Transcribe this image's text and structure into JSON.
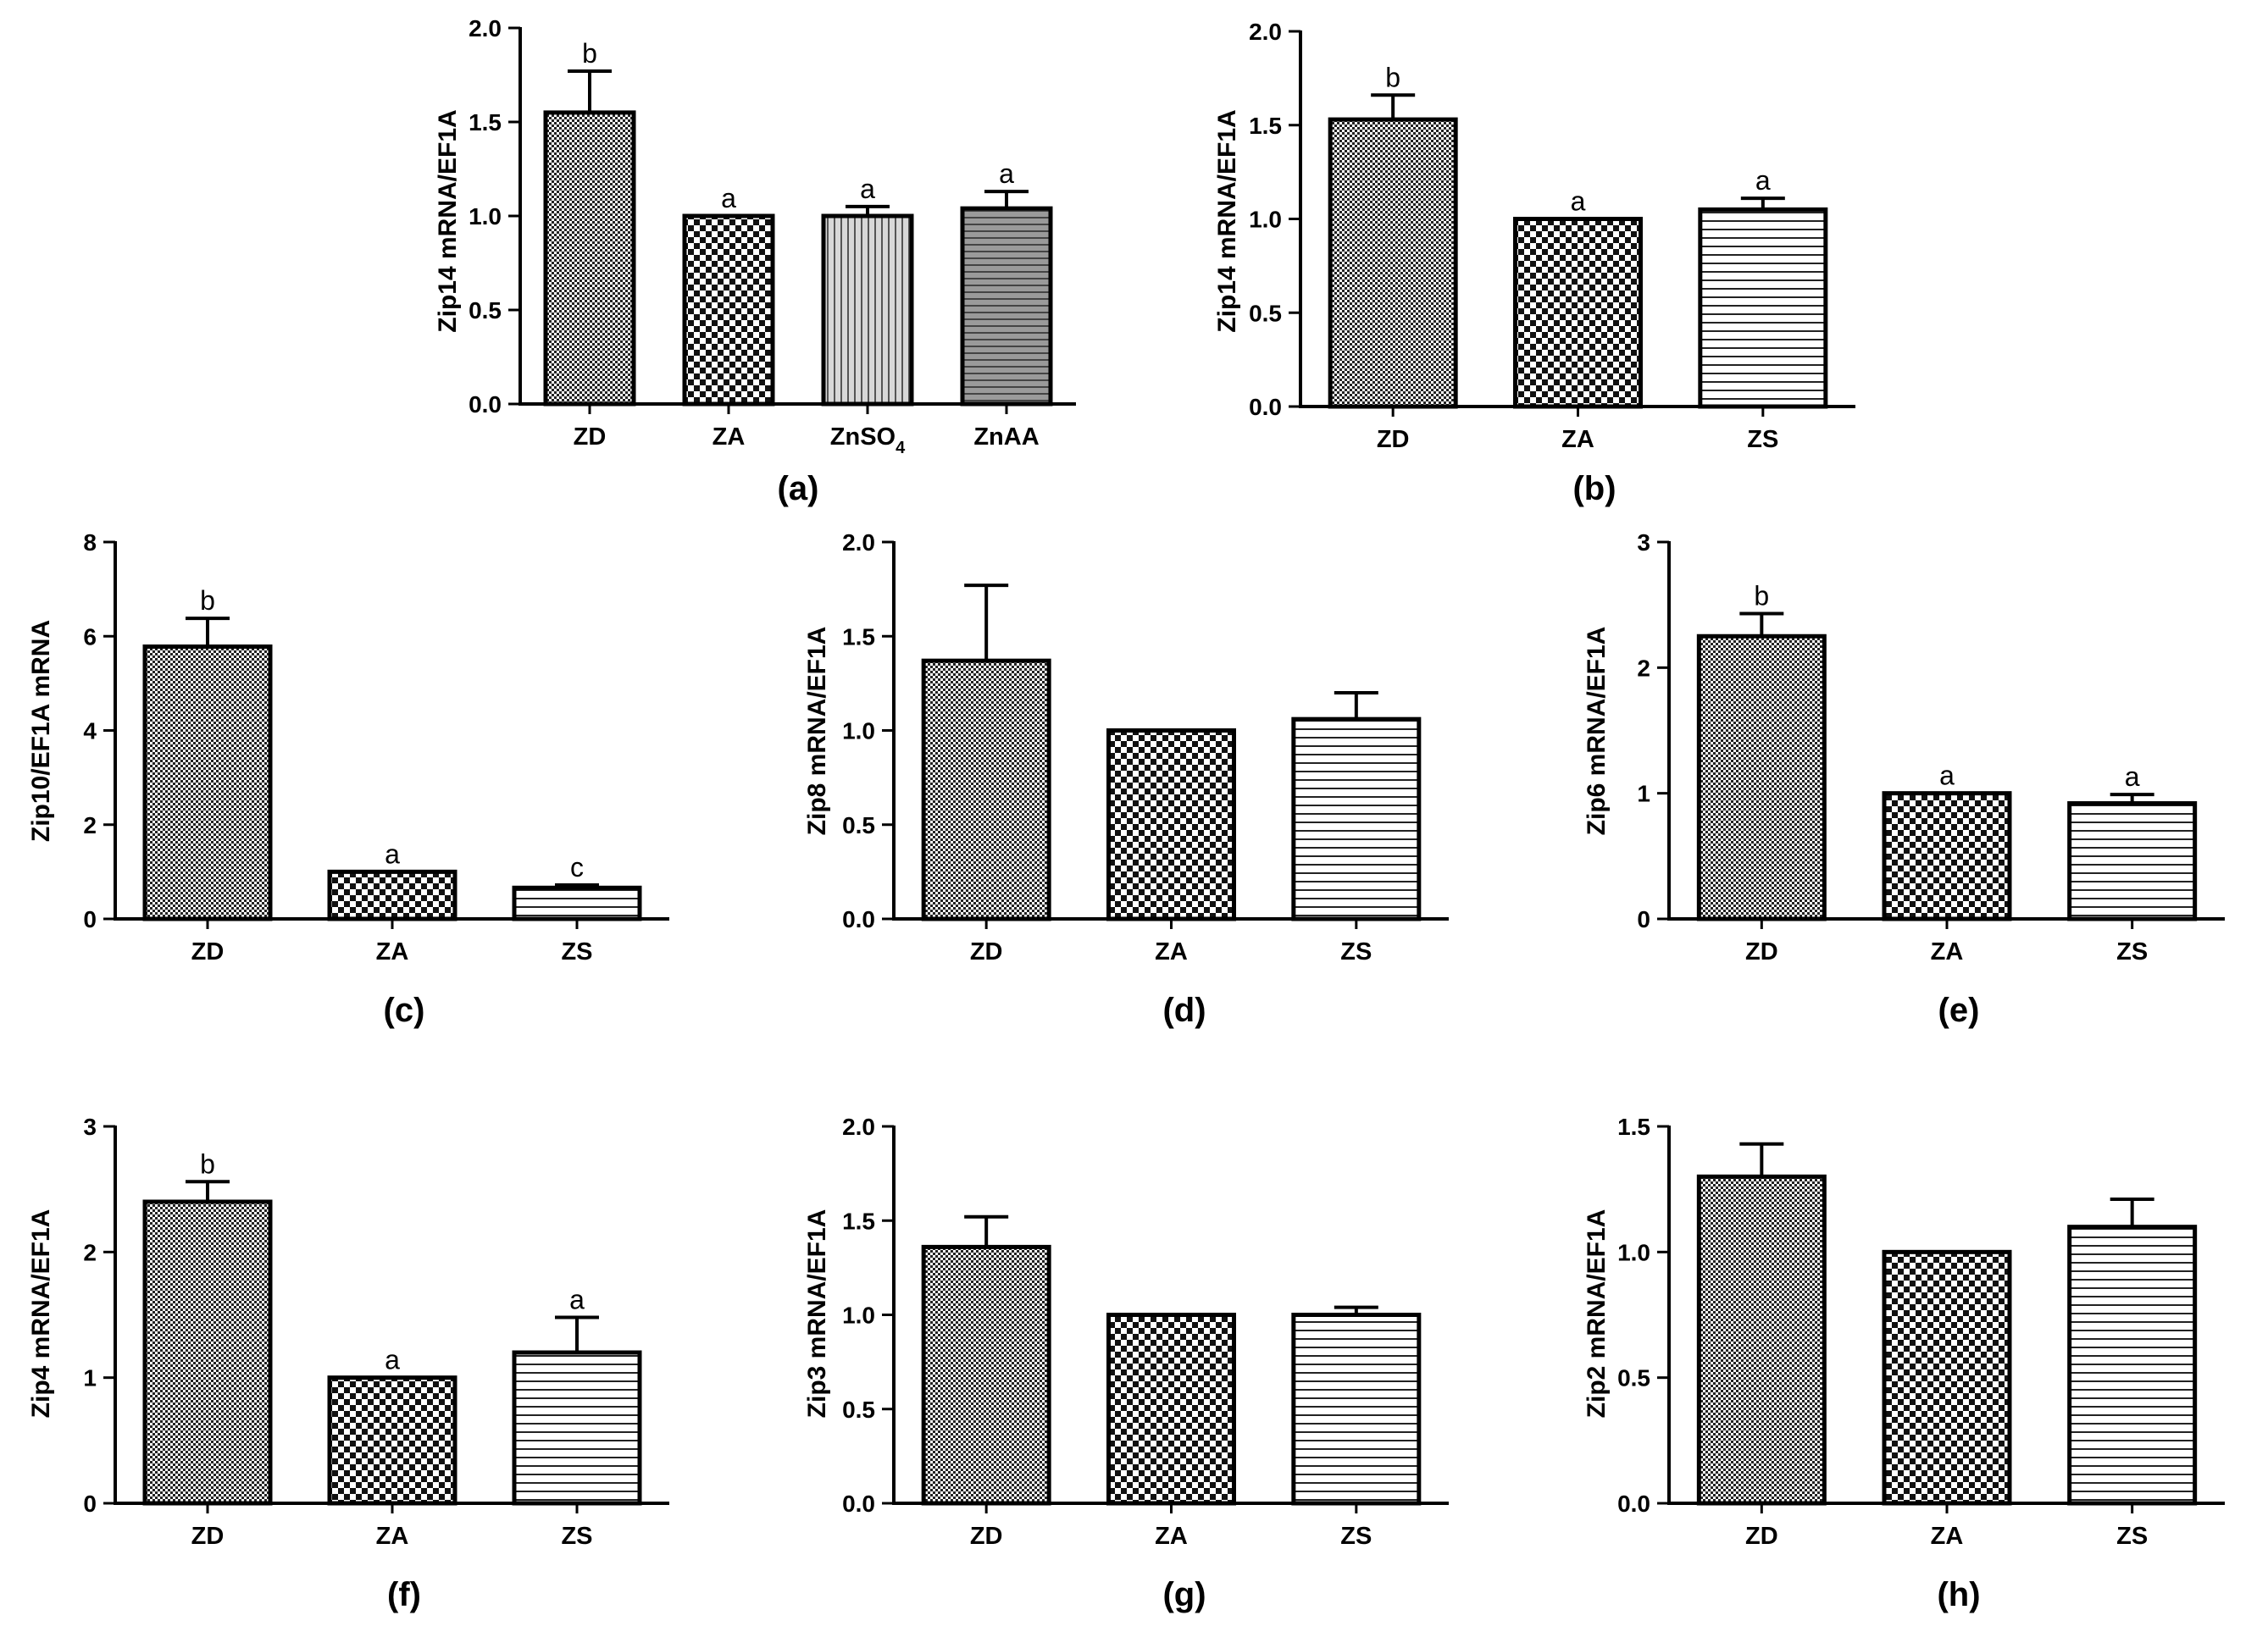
{
  "chart_data": [
    {
      "panel": "(a)",
      "type": "bar",
      "ylabel": "Zip14 mRNA/EF1A",
      "ylim": [
        0,
        2.0
      ],
      "yticks": [
        "0.0",
        "0.5",
        "1.0",
        "1.5",
        "2.0"
      ],
      "categories": [
        {
          "text": "ZD"
        },
        {
          "text": "ZA"
        },
        {
          "text": "ZnSO",
          "sub": "4"
        },
        {
          "text": "ZnAA"
        }
      ],
      "values": [
        1.55,
        1.0,
        1.0,
        1.04
      ],
      "errors": [
        0.22,
        0.0,
        0.05,
        0.09
      ],
      "significance": [
        "b",
        "a",
        "a",
        "a"
      ],
      "patterns": [
        "dense-check",
        "check",
        "vstripe",
        "hstripe-dark"
      ]
    },
    {
      "panel": "(b)",
      "type": "bar",
      "ylabel": "Zip14 mRNA/EF1A",
      "ylim": [
        0,
        2.0
      ],
      "yticks": [
        "0.0",
        "0.5",
        "1.0",
        "1.5",
        "2.0"
      ],
      "categories": [
        {
          "text": "ZD"
        },
        {
          "text": "ZA"
        },
        {
          "text": "ZS"
        }
      ],
      "values": [
        1.53,
        1.0,
        1.05
      ],
      "errors": [
        0.13,
        0.0,
        0.06
      ],
      "significance": [
        "b",
        "a",
        "a"
      ],
      "patterns": [
        "dense-check",
        "check",
        "hstripe"
      ]
    },
    {
      "panel": "(c)",
      "type": "bar",
      "ylabel": "Zip10/EF1A mRNA",
      "ylim": [
        0,
        8
      ],
      "yticks": [
        "0",
        "2",
        "4",
        "6",
        "8"
      ],
      "categories": [
        {
          "text": "ZD"
        },
        {
          "text": "ZA"
        },
        {
          "text": "ZS"
        }
      ],
      "values": [
        5.78,
        1.0,
        0.66
      ],
      "errors": [
        0.6,
        0.0,
        0.06
      ],
      "significance": [
        "b",
        "a",
        "c"
      ],
      "patterns": [
        "dense-check",
        "check",
        "hstripe"
      ]
    },
    {
      "panel": "(d)",
      "type": "bar",
      "ylabel": "Zip8 mRNA/EF1A",
      "ylim": [
        0,
        2.0
      ],
      "yticks": [
        "0.0",
        "0.5",
        "1.0",
        "1.5",
        "2.0"
      ],
      "categories": [
        {
          "text": "ZD"
        },
        {
          "text": "ZA"
        },
        {
          "text": "ZS"
        }
      ],
      "values": [
        1.37,
        1.0,
        1.06
      ],
      "errors": [
        0.4,
        0.0,
        0.14
      ],
      "significance": [
        "",
        "",
        ""
      ],
      "patterns": [
        "dense-check",
        "check",
        "hstripe"
      ]
    },
    {
      "panel": "(e)",
      "type": "bar",
      "ylabel": "Zip6 mRNA/EF1A",
      "ylim": [
        0,
        3
      ],
      "yticks": [
        "0",
        "1",
        "2",
        "3"
      ],
      "categories": [
        {
          "text": "ZD"
        },
        {
          "text": "ZA"
        },
        {
          "text": "ZS"
        }
      ],
      "values": [
        2.25,
        1.0,
        0.92
      ],
      "errors": [
        0.18,
        0.0,
        0.07
      ],
      "significance": [
        "b",
        "a",
        "a"
      ],
      "patterns": [
        "dense-check",
        "check",
        "hstripe"
      ]
    },
    {
      "panel": "(f)",
      "type": "bar",
      "ylabel": "Zip4 mRNA/EF1A",
      "ylim": [
        0,
        3
      ],
      "yticks": [
        "0",
        "1",
        "2",
        "3"
      ],
      "categories": [
        {
          "text": "ZD"
        },
        {
          "text": "ZA"
        },
        {
          "text": "ZS"
        }
      ],
      "values": [
        2.4,
        1.0,
        1.2
      ],
      "errors": [
        0.16,
        0.0,
        0.28
      ],
      "significance": [
        "b",
        "a",
        "a"
      ],
      "patterns": [
        "dense-check",
        "check",
        "hstripe"
      ]
    },
    {
      "panel": "(g)",
      "type": "bar",
      "ylabel": "Zip3 mRNA/EF1A",
      "ylim": [
        0,
        2.0
      ],
      "yticks": [
        "0.0",
        "0.5",
        "1.0",
        "1.5",
        "2.0"
      ],
      "categories": [
        {
          "text": "ZD"
        },
        {
          "text": "ZA"
        },
        {
          "text": "ZS"
        }
      ],
      "values": [
        1.36,
        1.0,
        1.0
      ],
      "errors": [
        0.16,
        0.0,
        0.04
      ],
      "significance": [
        "",
        "",
        ""
      ],
      "patterns": [
        "dense-check",
        "check",
        "hstripe"
      ]
    },
    {
      "panel": "(h)",
      "type": "bar",
      "ylabel": "Zip2 mRNA/EF1A",
      "ylim": [
        0,
        1.5
      ],
      "yticks": [
        "0.0",
        "0.5",
        "1.0",
        "1.5"
      ],
      "categories": [
        {
          "text": "ZD"
        },
        {
          "text": "ZA"
        },
        {
          "text": "ZS"
        }
      ],
      "values": [
        1.3,
        1.0,
        1.1
      ],
      "errors": [
        0.13,
        0.0,
        0.11
      ],
      "significance": [
        "",
        "",
        ""
      ],
      "patterns": [
        "dense-check",
        "check",
        "hstripe"
      ]
    }
  ]
}
